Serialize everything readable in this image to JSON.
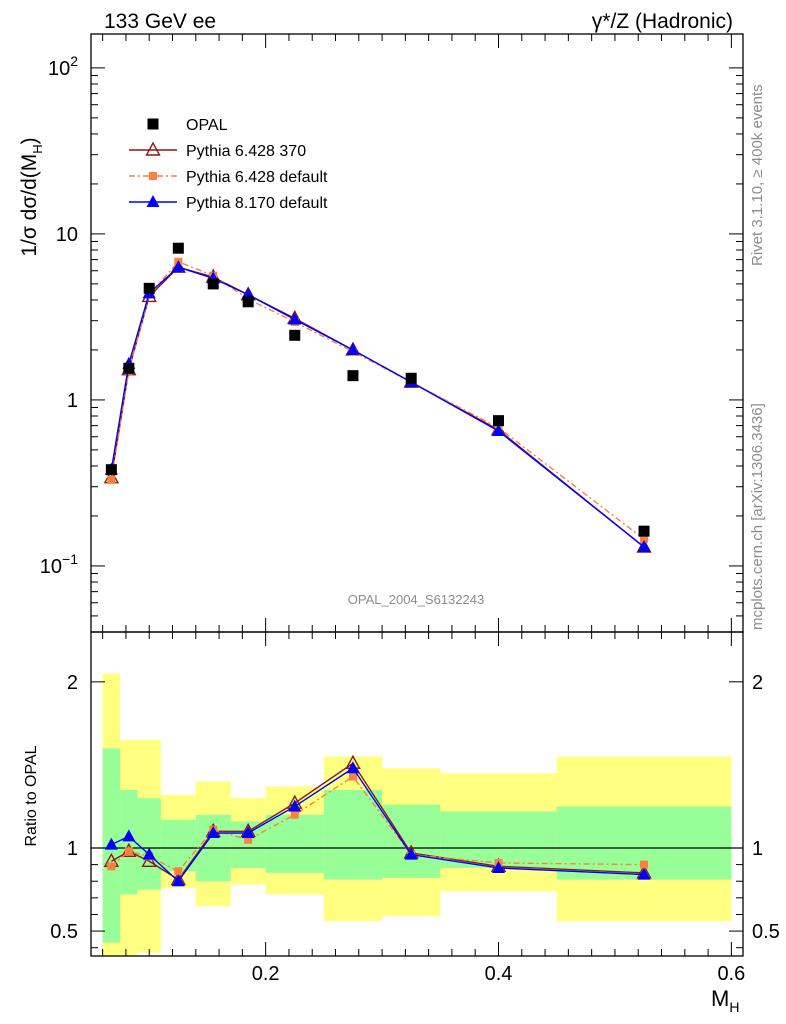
{
  "chart_data": {
    "type": "line",
    "header": {
      "left": "133 GeV ee",
      "right_main": "γ*/Z (Hadronic)"
    },
    "side_text": {
      "rivet": "Rivet 3.1.10, ≥ 400k events",
      "source": "mcplots.cern.ch [arXiv:1306.3436]"
    },
    "watermark": "OPAL_2004_S6132243",
    "xlabel": "M",
    "xlabel_sub": "H",
    "xlim": [
      0.05,
      0.61
    ],
    "xticks": [
      {
        "value": 0.2,
        "label": "0.2"
      },
      {
        "value": 0.4,
        "label": "0.4"
      },
      {
        "value": 0.6,
        "label": "0.6"
      }
    ],
    "main": {
      "ylabel": "1/σ dσ/d(M",
      "ylabel_sub": "H",
      "ylabel_close": ")",
      "scale": "log",
      "ylim": [
        0.04,
        160
      ],
      "yticks": [
        {
          "value": 0.1,
          "label": "10",
          "sup": "−1"
        },
        {
          "value": 1,
          "label": "1",
          "sup": ""
        },
        {
          "value": 10,
          "label": "10",
          "sup": ""
        },
        {
          "value": 100,
          "label": "10",
          "sup": "2"
        }
      ]
    },
    "ratio": {
      "ylabel": "Ratio to OPAL",
      "ylim": [
        0.35,
        2.3
      ],
      "yticks": [
        {
          "value": 0.5,
          "label": "0.5"
        },
        {
          "value": 1,
          "label": "1"
        },
        {
          "value": 2,
          "label": "2"
        }
      ],
      "bins": [
        {
          "lo": 0.06,
          "hi": 0.075,
          "yellow": [
            0.2,
            2.05
          ],
          "green": [
            0.43,
            1.6
          ]
        },
        {
          "lo": 0.075,
          "hi": 0.09,
          "yellow": [
            0.35,
            1.65
          ],
          "green": [
            0.72,
            1.35
          ]
        },
        {
          "lo": 0.09,
          "hi": 0.11,
          "yellow": [
            0.37,
            1.65
          ],
          "green": [
            0.75,
            1.3
          ]
        },
        {
          "lo": 0.11,
          "hi": 0.14,
          "yellow": [
            0.76,
            1.32
          ],
          "green": [
            0.86,
            1.17
          ]
        },
        {
          "lo": 0.14,
          "hi": 0.17,
          "yellow": [
            0.65,
            1.4
          ],
          "green": [
            0.8,
            1.2
          ]
        },
        {
          "lo": 0.17,
          "hi": 0.2,
          "yellow": [
            0.78,
            1.3
          ],
          "green": [
            0.88,
            1.16
          ]
        },
        {
          "lo": 0.2,
          "hi": 0.25,
          "yellow": [
            0.72,
            1.37
          ],
          "green": [
            0.85,
            1.2
          ]
        },
        {
          "lo": 0.25,
          "hi": 0.3,
          "yellow": [
            0.56,
            1.55
          ],
          "green": [
            0.81,
            1.35
          ]
        },
        {
          "lo": 0.3,
          "hi": 0.35,
          "yellow": [
            0.59,
            1.48
          ],
          "green": [
            0.82,
            1.26
          ]
        },
        {
          "lo": 0.35,
          "hi": 0.45,
          "yellow": [
            0.74,
            1.45
          ],
          "green": [
            0.88,
            1.22
          ]
        },
        {
          "lo": 0.45,
          "hi": 0.6,
          "yellow": [
            0.56,
            1.55
          ],
          "green": [
            0.81,
            1.25
          ]
        }
      ]
    },
    "legend_position": "upper-left",
    "series": [
      {
        "name": "OPAL",
        "kind": "data",
        "color": "#000000",
        "marker": "square",
        "x": [
          0.0675,
          0.0825,
          0.1,
          0.125,
          0.155,
          0.185,
          0.225,
          0.275,
          0.325,
          0.4,
          0.525
        ],
        "y": [
          0.38,
          1.55,
          4.7,
          8.2,
          5.0,
          3.9,
          2.45,
          1.4,
          1.35,
          0.75,
          0.162
        ],
        "ratio": [
          1,
          1,
          1,
          1,
          1,
          1,
          1,
          1,
          1,
          1,
          1
        ]
      },
      {
        "name": "Pythia 6.428 370",
        "kind": "mc",
        "color": "#8b1a1a",
        "marker": "triangle-open",
        "dash": "",
        "x": [
          0.0675,
          0.0825,
          0.1,
          0.125,
          0.155,
          0.185,
          0.225,
          0.275,
          0.325,
          0.4,
          0.525
        ],
        "y": [
          0.34,
          1.52,
          4.2,
          6.3,
          5.5,
          4.3,
          3.1,
          2.0,
          1.28,
          0.66,
          0.13
        ],
        "ratio": [
          0.92,
          0.98,
          0.92,
          0.81,
          1.1,
          1.1,
          1.27,
          1.51,
          0.97,
          0.89,
          0.85
        ]
      },
      {
        "name": "Pythia 6.428 default",
        "kind": "mc",
        "color": "#ff7f3f",
        "marker": "square-small",
        "dash": "6,3,2,3",
        "x": [
          0.0675,
          0.0825,
          0.1,
          0.125,
          0.155,
          0.185,
          0.225,
          0.275,
          0.325,
          0.4,
          0.525
        ],
        "y": [
          0.33,
          1.5,
          4.3,
          6.8,
          5.6,
          4.05,
          2.95,
          1.95,
          1.28,
          0.68,
          0.145
        ],
        "ratio": [
          0.89,
          0.98,
          0.95,
          0.86,
          1.11,
          1.05,
          1.2,
          1.43,
          0.96,
          0.91,
          0.9
        ]
      },
      {
        "name": "Pythia 8.170 default",
        "kind": "mc",
        "color": "#0000ff",
        "marker": "triangle",
        "dash": "",
        "x": [
          0.0675,
          0.0825,
          0.1,
          0.125,
          0.155,
          0.185,
          0.225,
          0.275,
          0.325,
          0.4,
          0.525
        ],
        "y": [
          0.38,
          1.65,
          4.4,
          6.3,
          5.4,
          4.3,
          3.05,
          2.0,
          1.28,
          0.65,
          0.13
        ],
        "ratio": [
          1.02,
          1.07,
          0.96,
          0.8,
          1.09,
          1.09,
          1.25,
          1.48,
          0.96,
          0.88,
          0.84
        ]
      }
    ]
  }
}
